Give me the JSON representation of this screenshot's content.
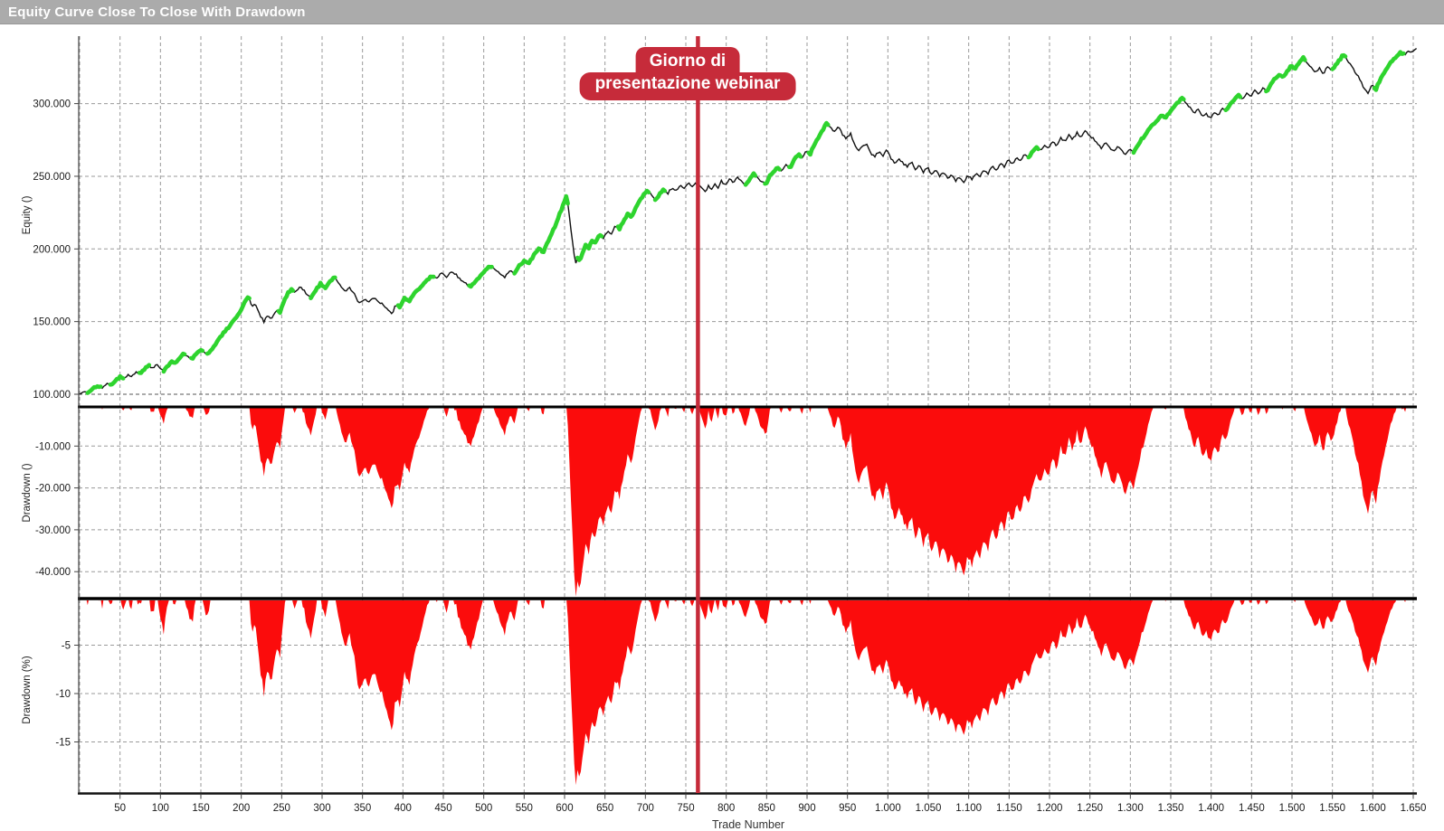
{
  "window": {
    "title": "Equity Curve Close To Close With Drawdown"
  },
  "style": {
    "titlebar_bg": "#ababab",
    "grid_color": "#9a9a9a",
    "start_capital_grid_color": "#555555",
    "equity_line_color": "#111111",
    "win_streak_color": "#2ed42e",
    "drawdown_fill_color": "#fb0c0c",
    "marker_color": "#c62b3a",
    "axis_text_color": "#1a1a1a",
    "panel_border_color": "#000000"
  },
  "chart_data": {
    "type": "line",
    "title": "Equity Curve Close To Close With Drawdown",
    "x": {
      "label": "Trade Number",
      "min": 0,
      "max": 1655,
      "tick_min": 50,
      "tick_max": 1650,
      "tick_step": 50
    },
    "marker": {
      "trade": 765,
      "label_line1": "Giorno di",
      "label_line2": "presentazione webinar"
    },
    "panels": [
      {
        "name": "equity",
        "ylabel": "Equity ()",
        "ylim": [
          98000,
          346000
        ],
        "yticks": [
          100000,
          150000,
          200000,
          250000,
          300000
        ],
        "series": "equity_control_points",
        "note": "black close-to-close equity line; bright green thick segments mark winning streaks"
      },
      {
        "name": "drawdown_abs",
        "ylabel": "Drawdown ()",
        "ylim": [
          -46000,
          0
        ],
        "yticks": [
          -10000,
          -20000,
          -30000,
          -40000
        ],
        "derived_from": "equity",
        "formula": "equity - running_max(equity)",
        "fill": "red area"
      },
      {
        "name": "drawdown_pct",
        "ylabel": "Drawdown (%)",
        "ylim": [
          -20.3,
          0
        ],
        "yticks": [
          -5,
          -10,
          -15
        ],
        "derived_from": "equity",
        "formula": "(equity - running_max(equity)) / running_max(equity) * 100",
        "fill": "red area"
      }
    ],
    "equity_control_points": [
      [
        0,
        100000
      ],
      [
        6,
        102000
      ],
      [
        11,
        101000
      ],
      [
        17,
        103800
      ],
      [
        23,
        105800
      ],
      [
        28,
        104700
      ],
      [
        34,
        107500
      ],
      [
        40,
        106500
      ],
      [
        45,
        109800
      ],
      [
        50,
        112000
      ],
      [
        55,
        110500
      ],
      [
        60,
        113500
      ],
      [
        65,
        112200
      ],
      [
        70,
        115500
      ],
      [
        75,
        114200
      ],
      [
        80,
        117500
      ],
      [
        85,
        119800
      ],
      [
        90,
        118000
      ],
      [
        95,
        120800
      ],
      [
        100,
        118000
      ],
      [
        104,
        116200
      ],
      [
        109,
        119500
      ],
      [
        114,
        123000
      ],
      [
        119,
        121500
      ],
      [
        124,
        125500
      ],
      [
        129,
        128000
      ],
      [
        134,
        126000
      ],
      [
        139,
        124000
      ],
      [
        144,
        127500
      ],
      [
        149,
        131000
      ],
      [
        154,
        129000
      ],
      [
        159,
        127000
      ],
      [
        164,
        131500
      ],
      [
        169,
        135000
      ],
      [
        174,
        139500
      ],
      [
        180,
        143500
      ],
      [
        186,
        147500
      ],
      [
        192,
        151500
      ],
      [
        198,
        156500
      ],
      [
        203,
        162000
      ],
      [
        209,
        167500
      ],
      [
        213,
        160000
      ],
      [
        217,
        163000
      ],
      [
        222,
        155500
      ],
      [
        228,
        150000
      ],
      [
        232,
        154000
      ],
      [
        237,
        151500
      ],
      [
        243,
        158000
      ],
      [
        248,
        156000
      ],
      [
        252,
        163000
      ],
      [
        257,
        169000
      ],
      [
        262,
        172000
      ],
      [
        267,
        170000
      ],
      [
        273,
        174500
      ],
      [
        280,
        169500
      ],
      [
        286,
        166500
      ],
      [
        292,
        172000
      ],
      [
        298,
        176000
      ],
      [
        304,
        173500
      ],
      [
        310,
        178000
      ],
      [
        316,
        180500
      ],
      [
        322,
        175000
      ],
      [
        328,
        171000
      ],
      [
        334,
        173000
      ],
      [
        340,
        169000
      ],
      [
        346,
        162500
      ],
      [
        352,
        165500
      ],
      [
        358,
        163500
      ],
      [
        364,
        166500
      ],
      [
        370,
        164000
      ],
      [
        376,
        161500
      ],
      [
        382,
        158000
      ],
      [
        387,
        155500
      ],
      [
        391,
        162000
      ],
      [
        396,
        160000
      ],
      [
        402,
        166000
      ],
      [
        408,
        164000
      ],
      [
        415,
        170000
      ],
      [
        422,
        174000
      ],
      [
        429,
        178000
      ],
      [
        436,
        181500
      ],
      [
        442,
        179500
      ],
      [
        448,
        183500
      ],
      [
        454,
        180500
      ],
      [
        460,
        184500
      ],
      [
        466,
        182000
      ],
      [
        472,
        178500
      ],
      [
        478,
        176000
      ],
      [
        484,
        174000
      ],
      [
        490,
        178000
      ],
      [
        496,
        181500
      ],
      [
        502,
        185500
      ],
      [
        508,
        188000
      ],
      [
        514,
        186000
      ],
      [
        520,
        183500
      ],
      [
        526,
        180500
      ],
      [
        532,
        185000
      ],
      [
        538,
        183000
      ],
      [
        544,
        188500
      ],
      [
        550,
        192000
      ],
      [
        556,
        190000
      ],
      [
        562,
        196000
      ],
      [
        568,
        200000
      ],
      [
        574,
        198000
      ],
      [
        580,
        206000
      ],
      [
        585,
        212000
      ],
      [
        590,
        218000
      ],
      [
        594,
        224000
      ],
      [
        598,
        230000
      ],
      [
        602,
        236500
      ],
      [
        604,
        231000
      ],
      [
        606,
        222000
      ],
      [
        608,
        213000
      ],
      [
        610,
        204000
      ],
      [
        612,
        196000
      ],
      [
        614,
        190000
      ],
      [
        616,
        194000
      ],
      [
        619,
        191500
      ],
      [
        622,
        197000
      ],
      [
        626,
        203000
      ],
      [
        630,
        200500
      ],
      [
        634,
        206000
      ],
      [
        638,
        204000
      ],
      [
        643,
        209500
      ],
      [
        648,
        207500
      ],
      [
        653,
        212500
      ],
      [
        658,
        210500
      ],
      [
        663,
        216000
      ],
      [
        668,
        214000
      ],
      [
        673,
        219500
      ],
      [
        678,
        224000
      ],
      [
        683,
        222000
      ],
      [
        688,
        228000
      ],
      [
        693,
        233000
      ],
      [
        698,
        237500
      ],
      [
        703,
        240000
      ],
      [
        708,
        236500
      ],
      [
        713,
        233500
      ],
      [
        718,
        238500
      ],
      [
        723,
        241000
      ],
      [
        728,
        238000
      ],
      [
        733,
        242500
      ],
      [
        738,
        240000
      ],
      [
        743,
        244000
      ],
      [
        748,
        241500
      ],
      [
        753,
        245000
      ],
      [
        758,
        242500
      ],
      [
        762,
        245500
      ],
      [
        766,
        244000
      ],
      [
        770,
        241500
      ],
      [
        774,
        239000
      ],
      [
        778,
        243000
      ],
      [
        782,
        240500
      ],
      [
        786,
        244500
      ],
      [
        790,
        242000
      ],
      [
        794,
        246500
      ],
      [
        799,
        244000
      ],
      [
        804,
        248000
      ],
      [
        809,
        245500
      ],
      [
        814,
        249500
      ],
      [
        819,
        246500
      ],
      [
        824,
        244000
      ],
      [
        829,
        248500
      ],
      [
        834,
        252000
      ],
      [
        839,
        249000
      ],
      [
        844,
        246000
      ],
      [
        849,
        244500
      ],
      [
        854,
        250000
      ],
      [
        859,
        253500
      ],
      [
        864,
        256000
      ],
      [
        869,
        253500
      ],
      [
        874,
        258000
      ],
      [
        879,
        255500
      ],
      [
        884,
        261000
      ],
      [
        889,
        265000
      ],
      [
        894,
        262500
      ],
      [
        899,
        268000
      ],
      [
        904,
        265500
      ],
      [
        909,
        272000
      ],
      [
        914,
        276500
      ],
      [
        919,
        281500
      ],
      [
        924,
        286500
      ],
      [
        929,
        283500
      ],
      [
        934,
        281000
      ],
      [
        939,
        284000
      ],
      [
        944,
        278500
      ],
      [
        949,
        276000
      ],
      [
        954,
        279500
      ],
      [
        959,
        271500
      ],
      [
        964,
        267500
      ],
      [
        969,
        271000
      ],
      [
        974,
        272500
      ],
      [
        979,
        266000
      ],
      [
        984,
        263500
      ],
      [
        989,
        267000
      ],
      [
        994,
        264000
      ],
      [
        999,
        268500
      ],
      [
        1004,
        262500
      ],
      [
        1009,
        258500
      ],
      [
        1014,
        262000
      ],
      [
        1019,
        259000
      ],
      [
        1024,
        256500
      ],
      [
        1029,
        260000
      ],
      [
        1034,
        254500
      ],
      [
        1039,
        257500
      ],
      [
        1044,
        253000
      ],
      [
        1049,
        256500
      ],
      [
        1054,
        251500
      ],
      [
        1059,
        254500
      ],
      [
        1064,
        250000
      ],
      [
        1069,
        253000
      ],
      [
        1074,
        248500
      ],
      [
        1079,
        251500
      ],
      [
        1084,
        247000
      ],
      [
        1089,
        249500
      ],
      [
        1094,
        245500
      ],
      [
        1099,
        250500
      ],
      [
        1104,
        248000
      ],
      [
        1109,
        252500
      ],
      [
        1114,
        250000
      ],
      [
        1119,
        254500
      ],
      [
        1124,
        252000
      ],
      [
        1129,
        257000
      ],
      [
        1134,
        254000
      ],
      [
        1139,
        259000
      ],
      [
        1144,
        256500
      ],
      [
        1149,
        261500
      ],
      [
        1154,
        258500
      ],
      [
        1159,
        263000
      ],
      [
        1164,
        260500
      ],
      [
        1169,
        265500
      ],
      [
        1174,
        262500
      ],
      [
        1179,
        267000
      ],
      [
        1184,
        270000
      ],
      [
        1189,
        267500
      ],
      [
        1194,
        271500
      ],
      [
        1199,
        269000
      ],
      [
        1204,
        274000
      ],
      [
        1209,
        271000
      ],
      [
        1214,
        276500
      ],
      [
        1219,
        273500
      ],
      [
        1224,
        278500
      ],
      [
        1229,
        275500
      ],
      [
        1234,
        280000
      ],
      [
        1239,
        277000
      ],
      [
        1244,
        281500
      ],
      [
        1249,
        278500
      ],
      [
        1254,
        276000
      ],
      [
        1259,
        272500
      ],
      [
        1264,
        269500
      ],
      [
        1269,
        273000
      ],
      [
        1274,
        270000
      ],
      [
        1279,
        266500
      ],
      [
        1284,
        270500
      ],
      [
        1289,
        268000
      ],
      [
        1294,
        264500
      ],
      [
        1299,
        269000
      ],
      [
        1304,
        266500
      ],
      [
        1309,
        271500
      ],
      [
        1314,
        275500
      ],
      [
        1319,
        279000
      ],
      [
        1324,
        283000
      ],
      [
        1329,
        286000
      ],
      [
        1334,
        289000
      ],
      [
        1339,
        292000
      ],
      [
        1344,
        290000
      ],
      [
        1349,
        294500
      ],
      [
        1354,
        298000
      ],
      [
        1359,
        301000
      ],
      [
        1364,
        304500
      ],
      [
        1369,
        300500
      ],
      [
        1374,
        297000
      ],
      [
        1379,
        293500
      ],
      [
        1384,
        296000
      ],
      [
        1389,
        291000
      ],
      [
        1394,
        293500
      ],
      [
        1399,
        289500
      ],
      [
        1404,
        294000
      ],
      [
        1409,
        292000
      ],
      [
        1414,
        297000
      ],
      [
        1419,
        295000
      ],
      [
        1424,
        300000
      ],
      [
        1429,
        303500
      ],
      [
        1434,
        306000
      ],
      [
        1439,
        303000
      ],
      [
        1444,
        307500
      ],
      [
        1449,
        305000
      ],
      [
        1454,
        309500
      ],
      [
        1459,
        306500
      ],
      [
        1464,
        311000
      ],
      [
        1469,
        308500
      ],
      [
        1474,
        313500
      ],
      [
        1479,
        317000
      ],
      [
        1484,
        320000
      ],
      [
        1489,
        318000
      ],
      [
        1494,
        322500
      ],
      [
        1499,
        326000
      ],
      [
        1504,
        324000
      ],
      [
        1509,
        328500
      ],
      [
        1514,
        331500
      ],
      [
        1519,
        328000
      ],
      [
        1524,
        325000
      ],
      [
        1529,
        321500
      ],
      [
        1534,
        324500
      ],
      [
        1539,
        320500
      ],
      [
        1544,
        325500
      ],
      [
        1549,
        322500
      ],
      [
        1554,
        327000
      ],
      [
        1559,
        330500
      ],
      [
        1564,
        333500
      ],
      [
        1569,
        329500
      ],
      [
        1574,
        325500
      ],
      [
        1579,
        321000
      ],
      [
        1584,
        316500
      ],
      [
        1589,
        311000
      ],
      [
        1594,
        307500
      ],
      [
        1599,
        313000
      ],
      [
        1604,
        310000
      ],
      [
        1609,
        316500
      ],
      [
        1614,
        321000
      ],
      [
        1619,
        325500
      ],
      [
        1624,
        329500
      ],
      [
        1629,
        332500
      ],
      [
        1634,
        335500
      ],
      [
        1639,
        333500
      ],
      [
        1644,
        336500
      ],
      [
        1649,
        335000
      ],
      [
        1654,
        338000
      ]
    ]
  }
}
